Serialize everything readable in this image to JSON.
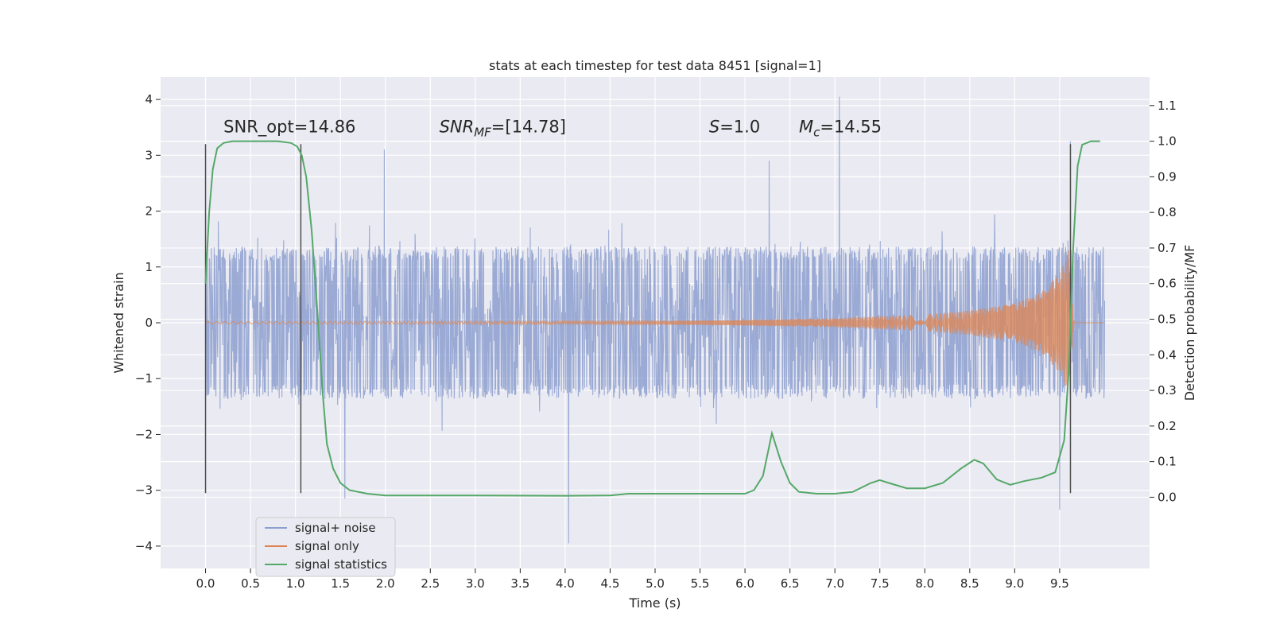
{
  "chart_data": {
    "type": "line",
    "title": "stats at each timestep for test data 8451 [signal=1]",
    "xlabel": "Time (s)",
    "ylabel_left": "Whitened strain",
    "ylabel_right": "Detection probability/MF",
    "xlim": [
      -0.5,
      10.5
    ],
    "ylim_left": [
      -4.4,
      4.4
    ],
    "ylim_right": [
      -0.2,
      1.18
    ],
    "x_ticks": [
      0.0,
      0.5,
      1.0,
      1.5,
      2.0,
      2.5,
      3.0,
      3.5,
      4.0,
      4.5,
      5.0,
      5.5,
      6.0,
      6.5,
      7.0,
      7.5,
      8.0,
      8.5,
      9.0,
      9.5
    ],
    "y_ticks_left": [
      4,
      3,
      2,
      1,
      0,
      -1,
      -2,
      -3,
      -4
    ],
    "y_ticks_right": [
      1.1,
      1.0,
      0.9,
      0.8,
      0.7,
      0.6,
      0.5,
      0.4,
      0.3,
      0.2,
      0.1,
      0.0
    ],
    "grid": true,
    "legend_position": "lower-left",
    "annotations": [
      {
        "text": "SNR_opt=14.86",
        "x": 0.2,
        "y": 3.2
      },
      {
        "text_main": "SNR",
        "text_sub": "MF",
        "text_rest": "=[14.78]",
        "x": 2.6,
        "y": 3.2
      },
      {
        "text_main": "S",
        "text_rest": "=1.0",
        "x": 5.6,
        "y": 3.2
      },
      {
        "text_main": "M",
        "text_sub": "c",
        "text_rest": "=14.55",
        "x": 6.6,
        "y": 3.2
      }
    ],
    "vlines": [
      {
        "x": 0.0,
        "ymin": -3.05,
        "ymax": 3.2
      },
      {
        "x": 1.06,
        "ymin": -3.05,
        "ymax": 3.2
      },
      {
        "x": 9.62,
        "ymin": -3.05,
        "ymax": 3.2
      }
    ],
    "series": [
      {
        "name": "signal+ noise",
        "color": "#8c9fcf",
        "style": "noise",
        "x_range": [
          0.0,
          10.0
        ],
        "envelope_typical": 1.3,
        "notable_spikes": [
          {
            "x": 1.99,
            "y": 3.1
          },
          {
            "x": 4.04,
            "y": -3.95
          },
          {
            "x": 6.27,
            "y": 2.9
          },
          {
            "x": 7.05,
            "y": 4.05
          },
          {
            "x": 9.62,
            "y": 3.25
          },
          {
            "x": 9.5,
            "y": -3.35
          },
          {
            "x": 1.55,
            "y": -3.15
          }
        ]
      },
      {
        "name": "signal only",
        "color": "#dd8452",
        "style": "chirp",
        "x": [
          0.0,
          5.0,
          6.0,
          7.0,
          8.0,
          8.5,
          9.0,
          9.3,
          9.5,
          9.6,
          9.66
        ],
        "amplitude": [
          0.02,
          0.03,
          0.05,
          0.08,
          0.15,
          0.22,
          0.35,
          0.55,
          0.9,
          1.3,
          0.05
        ]
      },
      {
        "name": "signal statistics",
        "color": "#55a868",
        "axis": "right",
        "x": [
          0.0,
          0.04,
          0.08,
          0.13,
          0.2,
          0.3,
          0.4,
          0.6,
          0.8,
          0.95,
          1.02,
          1.07,
          1.12,
          1.18,
          1.25,
          1.3,
          1.35,
          1.42,
          1.5,
          1.6,
          1.8,
          2.0,
          3.0,
          4.0,
          4.5,
          4.7,
          5.0,
          5.5,
          5.8,
          6.0,
          6.1,
          6.2,
          6.3,
          6.4,
          6.5,
          6.6,
          6.8,
          7.0,
          7.2,
          7.4,
          7.5,
          7.6,
          7.8,
          8.0,
          8.2,
          8.4,
          8.55,
          8.65,
          8.8,
          8.95,
          9.1,
          9.3,
          9.45,
          9.55,
          9.6,
          9.65,
          9.7,
          9.75,
          9.85,
          9.95
        ],
        "y": [
          0.6,
          0.8,
          0.92,
          0.98,
          0.995,
          1.0,
          1.0,
          1.0,
          1.0,
          0.995,
          0.985,
          0.96,
          0.9,
          0.75,
          0.5,
          0.3,
          0.15,
          0.08,
          0.04,
          0.02,
          0.01,
          0.005,
          0.005,
          0.004,
          0.005,
          0.01,
          0.01,
          0.01,
          0.01,
          0.01,
          0.02,
          0.06,
          0.18,
          0.1,
          0.04,
          0.015,
          0.01,
          0.01,
          0.015,
          0.04,
          0.048,
          0.04,
          0.025,
          0.025,
          0.04,
          0.08,
          0.105,
          0.095,
          0.05,
          0.035,
          0.045,
          0.055,
          0.07,
          0.16,
          0.35,
          0.7,
          0.93,
          0.99,
          1.0,
          1.0
        ]
      }
    ]
  }
}
